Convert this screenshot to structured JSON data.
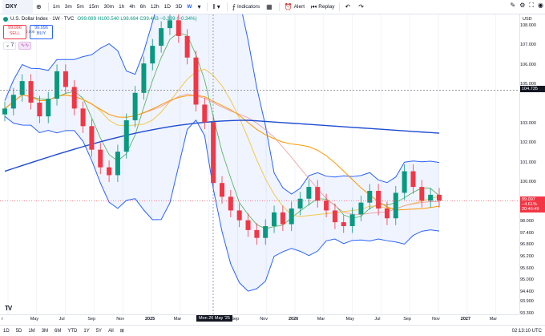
{
  "toolbar": {
    "symbol": "DXY",
    "intervals": [
      "1m",
      "3m",
      "5m",
      "15m",
      "30m",
      "1h",
      "4h",
      "6h",
      "12h",
      "1D",
      "3D",
      "W"
    ],
    "active_interval": "W",
    "indicators_label": "Indicators",
    "alert_label": "Alert",
    "replay_label": "Replay"
  },
  "legend": {
    "title": "U.S. Dollar Index · 1W · TVC",
    "ohlc": "O99.089 H100.540 L98.694 C99.443 −0.339 (−0.34%)",
    "sell_price": "99.096",
    "sell_label": "SELL",
    "buy_price": "99.096",
    "buy_label": "BUY",
    "spread": "0.000",
    "indicator_count": "7"
  },
  "price_axis": {
    "currency": "USD",
    "labels": [
      "108.000",
      "107.000",
      "106.000",
      "105.000",
      "103.000",
      "102.000",
      "101.000",
      "100.000",
      "98.000",
      "97.400",
      "96.800",
      "96.200",
      "95.600",
      "95.000",
      "94.400",
      "93.900",
      "93.300"
    ],
    "highlight_price": "104.735",
    "current_price": "99.097",
    "current_change": "−4.61%",
    "current_countdown": "20:46:49",
    "accent_red": "#f23645",
    "accent_dark": "#131722"
  },
  "time_axis": {
    "labels": [
      "r",
      "May",
      "Jul",
      "Sep",
      "Nov",
      "2025",
      "Mar",
      "Jul",
      "Sep",
      "Nov",
      "2026",
      "Mar",
      "May",
      "Jul",
      "Sep",
      "Nov",
      "2027",
      "Mar"
    ],
    "hover_label": "Mon 26 May '25"
  },
  "bottom_bar": {
    "ranges": [
      "1D",
      "5D",
      "1M",
      "3M",
      "6M",
      "YTD",
      "1Y",
      "5Y",
      "All"
    ],
    "clock": "02:13:10 UTC"
  },
  "chart_data": {
    "type": "line",
    "title": "U.S. Dollar Index · 1W · TVC",
    "ylim": [
      93.3,
      108.6
    ],
    "series": [
      {
        "values": [
          103.8,
          104.5,
          105.2,
          104.1,
          103.4,
          104.3,
          105.7,
          104.9,
          103.8,
          102.9,
          101.7,
          100.8,
          100.4,
          101.6,
          103.2,
          104.6,
          106.1,
          107.0,
          107.9,
          108.3,
          107.5,
          106.4,
          104.0,
          103.1,
          100.0,
          99.3,
          98.6,
          98.1,
          97.6,
          97.2,
          97.8,
          98.5,
          97.9,
          98.7,
          99.2,
          99.8,
          99.1,
          98.6,
          98.0,
          97.8,
          98.4,
          99.0,
          99.6,
          98.7,
          98.2,
          99.5,
          100.6,
          99.8,
          99.1,
          99.4,
          99.1
        ]
      }
    ]
  }
}
